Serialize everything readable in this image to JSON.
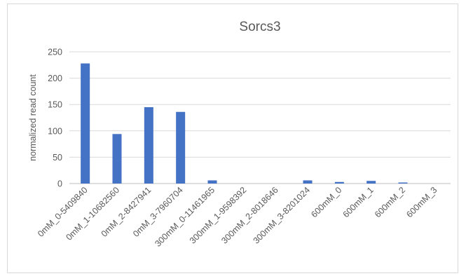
{
  "chart_data": {
    "type": "bar",
    "title": "Sorcs3",
    "xlabel": "",
    "ylabel": "normalized read count",
    "ylim": [
      0,
      250
    ],
    "yticks": [
      0,
      50,
      100,
      150,
      200,
      250
    ],
    "grid": true,
    "legend": "none",
    "bar_color": "#4472c4",
    "categories": [
      "0mM_0-5409840",
      "0mM_1-10682560",
      "0mM_2-8427941",
      "0mM_3-7960704",
      "300mM_0-11461965",
      "300mM_1-9598392",
      "300mM_2-8018646",
      "300mM_3-8201024",
      "600mM_0",
      "600mM_1",
      "600mM_2",
      "600mM_3"
    ],
    "values": [
      228,
      94,
      145,
      136,
      6,
      0,
      0,
      6,
      3,
      5,
      2,
      0
    ]
  }
}
